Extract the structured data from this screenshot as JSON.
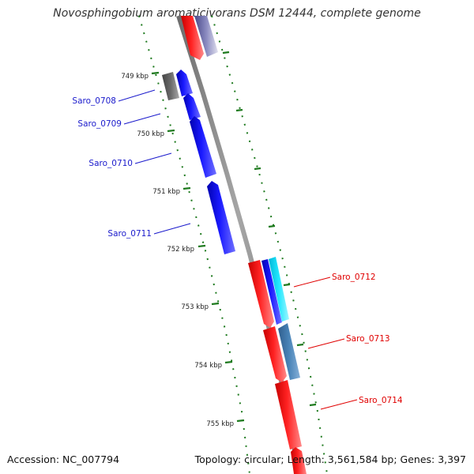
{
  "title": "Novosphingobium aromaticivorans DSM 12444, complete genome",
  "footer": {
    "accession": "Accession: NC_007794",
    "summary": "Topology: circular; Length: 3,561,584 bp; Genes: 3,397"
  },
  "colors": {
    "backbone": "#8a8a8a",
    "tick": "#1e7a1e",
    "forward_label": "#1a1acc",
    "reverse_label": "#e00000"
  },
  "kbp_marks": [
    "749 kbp",
    "750 kbp",
    "751 kbp",
    "752 kbp",
    "753 kbp",
    "754 kbp",
    "755 kbp"
  ],
  "genes_left": [
    "Saro_0708",
    "Saro_0709",
    "Saro_0710",
    "Saro_0711"
  ],
  "genes_right": [
    "Saro_0712",
    "Saro_0713",
    "Saro_0714"
  ]
}
